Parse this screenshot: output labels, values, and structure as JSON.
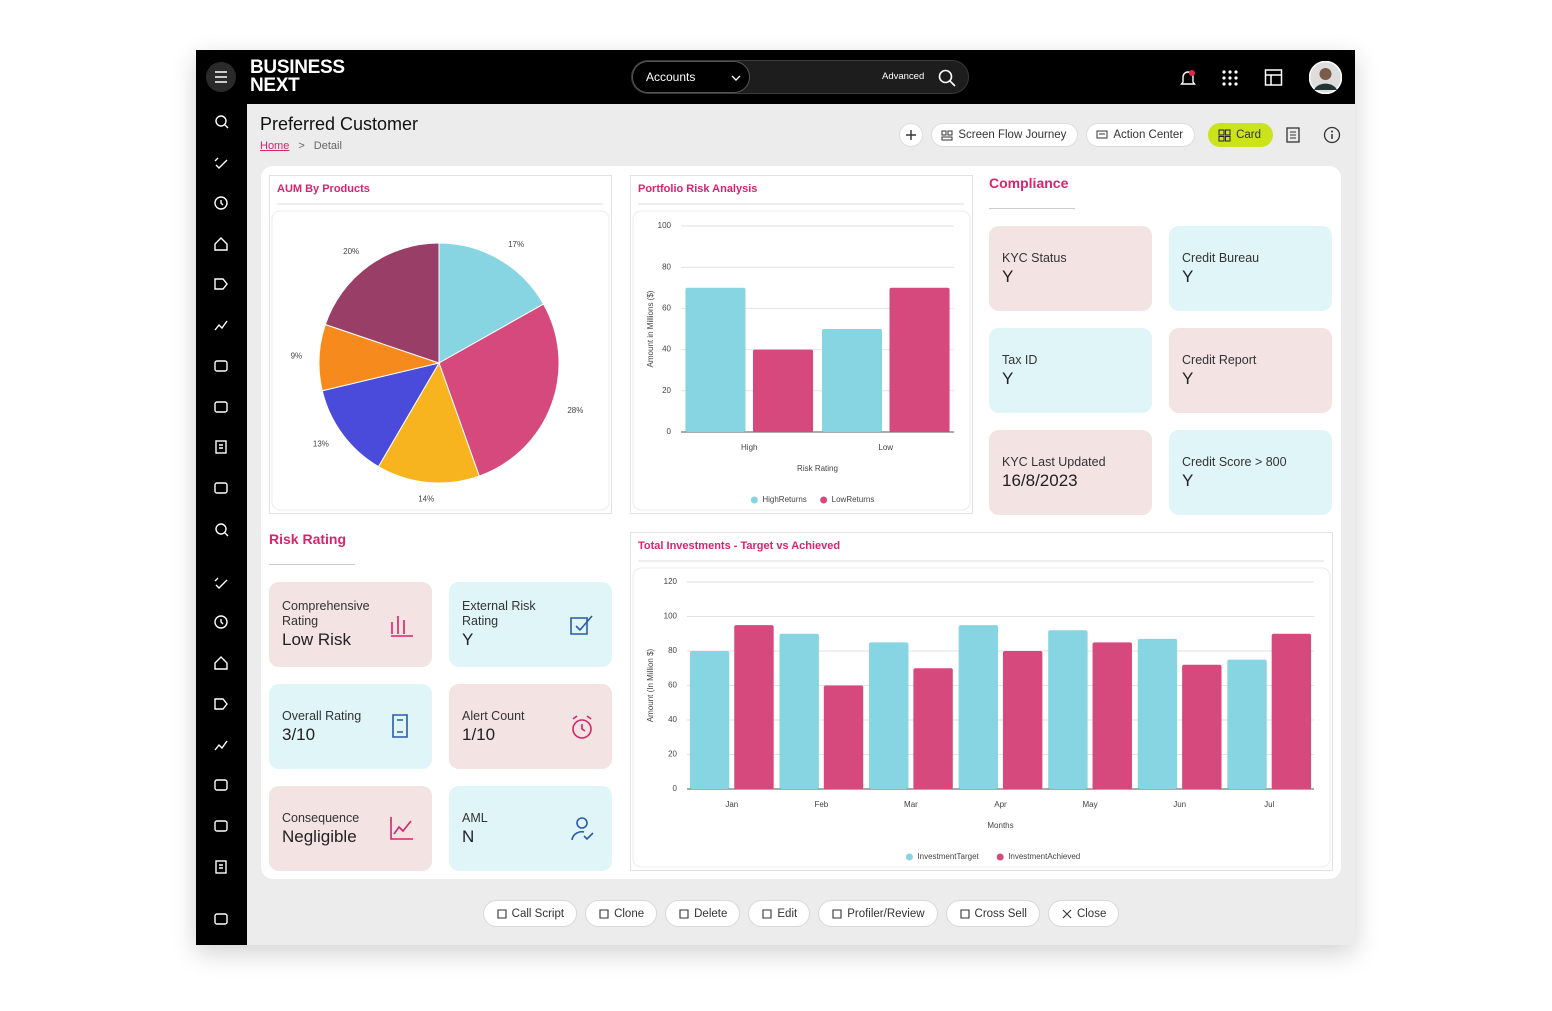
{
  "header": {
    "brand": [
      "BUSINESS",
      "NEXT"
    ],
    "search_scope": "Accounts",
    "search_mode": "Advanced"
  },
  "page": {
    "title": "Preferred Customer",
    "breadcrumb": [
      "Home",
      "Detail"
    ],
    "actions": [
      "Screen Flow Journey",
      "Action Center",
      "Card"
    ]
  },
  "chart_data": [
    {
      "type": "pie",
      "title": "AUM By Products",
      "values": [
        17,
        28,
        14,
        13,
        9,
        20
      ],
      "value_labels": [
        "17%",
        "28%",
        "14%",
        "13%",
        "9%",
        "20%"
      ],
      "colors": [
        "#87d5e2",
        "#d6497c",
        "#f8b41f",
        "#4a4adb",
        "#f78a1d",
        "#993e66"
      ]
    },
    {
      "type": "bar",
      "title": "Portfolio Risk Analysis",
      "categories": [
        "High",
        "Low"
      ],
      "series": [
        {
          "name": "HighReturns",
          "color": "#87d5e2",
          "values": [
            70,
            50
          ]
        },
        {
          "name": "LowReturns",
          "color": "#d6497c",
          "values": [
            40,
            70
          ]
        }
      ],
      "xlabel": "Risk Rating",
      "ylabel": "Amount in Millions ($)",
      "ylim": [
        0,
        100
      ],
      "yticks": [
        0,
        20,
        40,
        60,
        80,
        100
      ],
      "grid": true,
      "legend": "bottom"
    },
    {
      "type": "bar",
      "title": "Total Investments - Target vs Achieved",
      "categories": [
        "Jan",
        "Feb",
        "Mar",
        "Apr",
        "May",
        "Jun",
        "Jul"
      ],
      "series": [
        {
          "name": "InvestmentTarget",
          "color": "#87d5e2",
          "values": [
            80,
            90,
            85,
            95,
            92,
            87,
            75
          ]
        },
        {
          "name": "InvestmentAchieved",
          "color": "#d6497c",
          "values": [
            95,
            60,
            70,
            80,
            85,
            72,
            90
          ]
        }
      ],
      "xlabel": "Months",
      "ylabel": "Amount (In Million $)",
      "ylim": [
        0,
        120
      ],
      "yticks": [
        0,
        20,
        40,
        60,
        80,
        100,
        120
      ],
      "grid": true,
      "legend": "bottom"
    }
  ],
  "compliance": {
    "title": "Compliance",
    "items": [
      {
        "label": "KYC Status",
        "value": "Y"
      },
      {
        "label": "Credit Bureau",
        "value": "Y"
      },
      {
        "label": "Tax ID",
        "value": "Y"
      },
      {
        "label": "Credit Report",
        "value": "Y"
      },
      {
        "label": "KYC Last Updated",
        "value": "16/8/2023"
      },
      {
        "label": "Credit Score > 800",
        "value": "Y"
      }
    ]
  },
  "risk_rating": {
    "title": "Risk Rating",
    "items": [
      {
        "label": "Comprehensive Rating",
        "value": "Low Risk"
      },
      {
        "label": "External Risk Rating",
        "value": "Y"
      },
      {
        "label": "Overall Rating",
        "value": "3/10"
      },
      {
        "label": "Alert Count",
        "value": "1/10"
      },
      {
        "label": "Consequence",
        "value": "Negligible"
      },
      {
        "label": "AML",
        "value": "N"
      }
    ]
  },
  "footer_actions": [
    "Call Script",
    "Clone",
    "Delete",
    "Edit",
    "Profiler/Review",
    "Cross Sell",
    "Close"
  ]
}
